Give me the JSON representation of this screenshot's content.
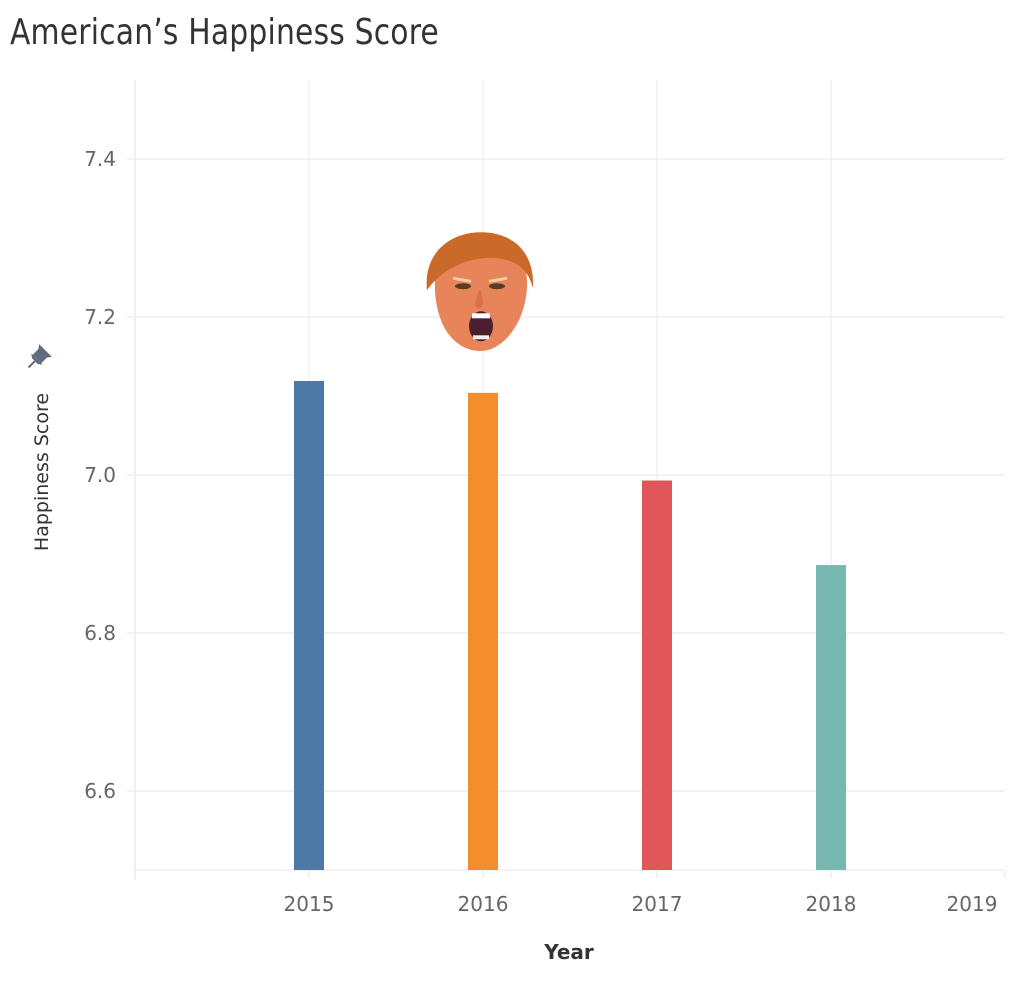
{
  "title": "American’s Happiness Score",
  "icons": {
    "axis_pin": "pin-icon",
    "annotation_image": "shouting-face-illustration"
  },
  "chart_data": {
    "type": "bar",
    "title": "American’s Happiness Score",
    "xlabel": "Year",
    "ylabel": "Happiness Score",
    "categories": [
      "2015",
      "2016",
      "2017",
      "2018"
    ],
    "x_ticks": [
      "2015",
      "2016",
      "2017",
      "2018",
      "2019"
    ],
    "values": [
      7.119,
      7.104,
      6.993,
      6.886
    ],
    "colors": [
      "#4E79A7",
      "#F28E2B",
      "#E15759",
      "#76B7B2"
    ],
    "ylim": [
      6.5,
      7.5
    ],
    "y_ticks": [
      "6.6",
      "6.8",
      "7.0",
      "7.2",
      "7.4"
    ],
    "y_tick_values": [
      6.6,
      6.8,
      7.0,
      7.2,
      7.4
    ],
    "grid": true,
    "legend": "none",
    "annotation": {
      "type": "image",
      "description": "shouting face",
      "category": "2016",
      "y_value": 7.23
    }
  }
}
